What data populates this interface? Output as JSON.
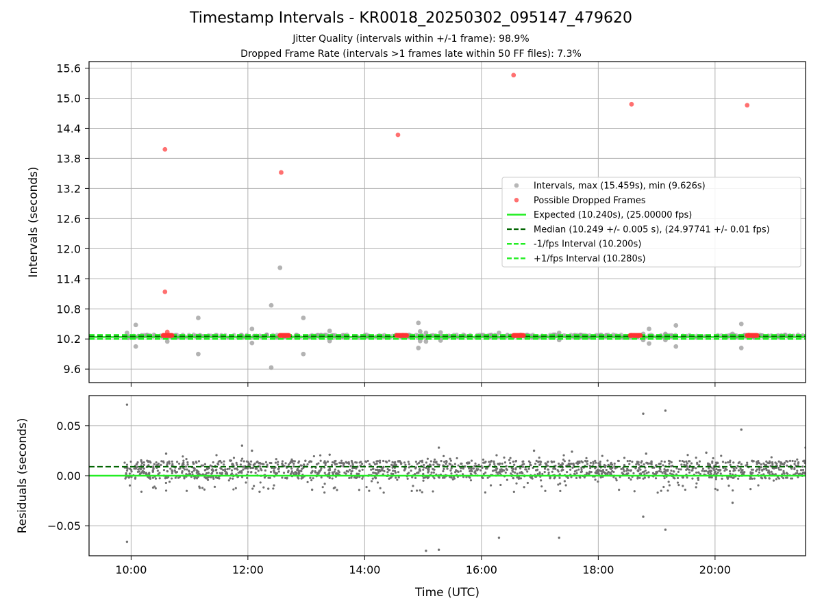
{
  "figure": {
    "title": "Timestamp Intervals - KR0018_20250302_095147_479620",
    "subtitle_1": "Jitter Quality (intervals within +/-1 frame): 98.9%",
    "subtitle_2": "Dropped Frame Rate (intervals >1 frames late within 50 FF files): 7.3%",
    "xlabel": "Time (UTC)"
  },
  "colors": {
    "interval_gray": "#999999",
    "dropped_red": "#ff3333",
    "expected_green": "#22ee22",
    "median_darkgreen": "#006400",
    "residual_gray": "#707070",
    "grid": "#b0b0b0"
  },
  "chart_data": [
    {
      "type": "scatter",
      "title": "",
      "ylabel": "Intervals (seconds)",
      "xlabel": "",
      "x_unit": "hours (UTC)",
      "xlim": [
        9.28,
        21.55
      ],
      "ylim": [
        9.33,
        15.73
      ],
      "x_ticks": [
        "10:00",
        "12:00",
        "14:00",
        "16:00",
        "18:00",
        "20:00"
      ],
      "x_tick_values": [
        10,
        12,
        14,
        16,
        18,
        20
      ],
      "y_ticks": [
        "9.6",
        "10.2",
        "10.8",
        "11.4",
        "12.0",
        "12.6",
        "13.2",
        "13.8",
        "14.4",
        "15.0",
        "15.6"
      ],
      "y_tick_values": [
        9.6,
        10.2,
        10.8,
        11.4,
        12.0,
        12.6,
        13.2,
        13.8,
        14.4,
        15.0,
        15.6
      ],
      "grid": true,
      "legend_position": "right",
      "legend": [
        "Intervals, max (15.459s), min (9.626s)",
        "Possible Dropped Frames",
        "Expected (10.240s), (25.00000 fps)",
        "Median (10.249 +/- 0.005 s), (24.97741 +/- 0.01 fps)",
        "-1/fps Interval (10.200s)",
        "+1/fps Interval (10.280s)"
      ],
      "lines": {
        "expected": 10.24,
        "median": 10.249,
        "minus_one_fps": 10.2,
        "plus_one_fps": 10.28
      },
      "series": [
        {
          "name": "Intervals, max (15.459s), min (9.626s)",
          "points": [
            [
              9.93,
              10.32
            ],
            [
              9.95,
              10.22
            ],
            [
              10.08,
              10.48
            ],
            [
              10.08,
              10.05
            ],
            [
              10.62,
              10.15
            ],
            [
              11.15,
              10.62
            ],
            [
              11.15,
              9.9
            ],
            [
              12.07,
              10.4
            ],
            [
              12.07,
              10.12
            ],
            [
              12.4,
              10.87
            ],
            [
              12.4,
              9.63
            ],
            [
              12.55,
              11.62
            ],
            [
              12.95,
              10.62
            ],
            [
              12.95,
              9.9
            ],
            [
              13.4,
              10.36
            ],
            [
              13.4,
              10.16
            ],
            [
              14.92,
              10.52
            ],
            [
              14.92,
              10.02
            ],
            [
              14.95,
              10.35
            ],
            [
              14.95,
              10.16
            ],
            [
              15.05,
              10.32
            ],
            [
              15.05,
              10.15
            ],
            [
              15.3,
              10.33
            ],
            [
              15.3,
              10.17
            ],
            [
              16.3,
              10.32
            ],
            [
              17.33,
              10.32
            ],
            [
              17.33,
              10.18
            ],
            [
              18.77,
              10.3
            ],
            [
              18.77,
              10.18
            ],
            [
              18.87,
              10.4
            ],
            [
              18.87,
              10.11
            ],
            [
              19.15,
              10.3
            ],
            [
              19.15,
              10.18
            ],
            [
              19.33,
              10.47
            ],
            [
              19.33,
              10.05
            ],
            [
              20.45,
              10.5
            ],
            [
              20.45,
              10.02
            ],
            [
              20.3,
              10.3
            ]
          ]
        },
        {
          "name": "Possible Dropped Frames",
          "points": [
            [
              10.58,
              13.98
            ],
            [
              10.58,
              11.14
            ],
            [
              10.62,
              10.34
            ],
            [
              12.57,
              13.52
            ],
            [
              14.57,
              14.27
            ],
            [
              16.55,
              15.46
            ],
            [
              18.57,
              14.88
            ],
            [
              20.55,
              14.86
            ]
          ],
          "clusters": [
            [
              10.55,
              10.7,
              10.27
            ],
            [
              12.55,
              12.7,
              10.27
            ],
            [
              14.55,
              14.72,
              10.27
            ],
            [
              16.55,
              16.72,
              10.27
            ],
            [
              18.55,
              18.72,
              10.27
            ],
            [
              20.55,
              20.72,
              10.27
            ]
          ]
        }
      ]
    },
    {
      "type": "scatter",
      "title": "",
      "ylabel": "Residuals (seconds)",
      "xlabel": "Time (UTC)",
      "xlim": [
        9.28,
        21.55
      ],
      "ylim": [
        -0.08,
        0.08
      ],
      "x_ticks": [
        "10:00",
        "12:00",
        "14:00",
        "16:00",
        "18:00",
        "20:00"
      ],
      "x_tick_values": [
        10,
        12,
        14,
        16,
        18,
        20
      ],
      "y_ticks": [
        "−0.05",
        "0.00",
        "0.05"
      ],
      "y_tick_values": [
        -0.05,
        0.0,
        0.05
      ],
      "grid": true,
      "lines": {
        "zero": 0.0,
        "median_residual": 0.009
      },
      "series": [
        {
          "name": "",
          "band_center": 0.009,
          "band_halfwidth": 0.006,
          "outliers": [
            [
              9.93,
              0.071
            ],
            [
              9.93,
              -0.066
            ],
            [
              11.9,
              0.03
            ],
            [
              12.07,
              0.025
            ],
            [
              15.05,
              -0.075
            ],
            [
              15.27,
              -0.074
            ],
            [
              15.27,
              0.028
            ],
            [
              16.3,
              -0.062
            ],
            [
              17.33,
              -0.062
            ],
            [
              18.77,
              0.062
            ],
            [
              18.77,
              -0.041
            ],
            [
              19.15,
              0.065
            ],
            [
              19.15,
              -0.054
            ],
            [
              20.45,
              0.046
            ],
            [
              20.3,
              -0.027
            ],
            [
              21.55,
              0.028
            ],
            [
              10.6,
              0.022
            ],
            [
              13.4,
              0.021
            ],
            [
              16.9,
              0.025
            ],
            [
              17.55,
              0.024
            ],
            [
              18.82,
              0.022
            ],
            [
              19.85,
              0.023
            ],
            [
              12.2,
              -0.016
            ],
            [
              12.35,
              -0.013
            ],
            [
              13.1,
              -0.014
            ]
          ]
        }
      ]
    }
  ]
}
